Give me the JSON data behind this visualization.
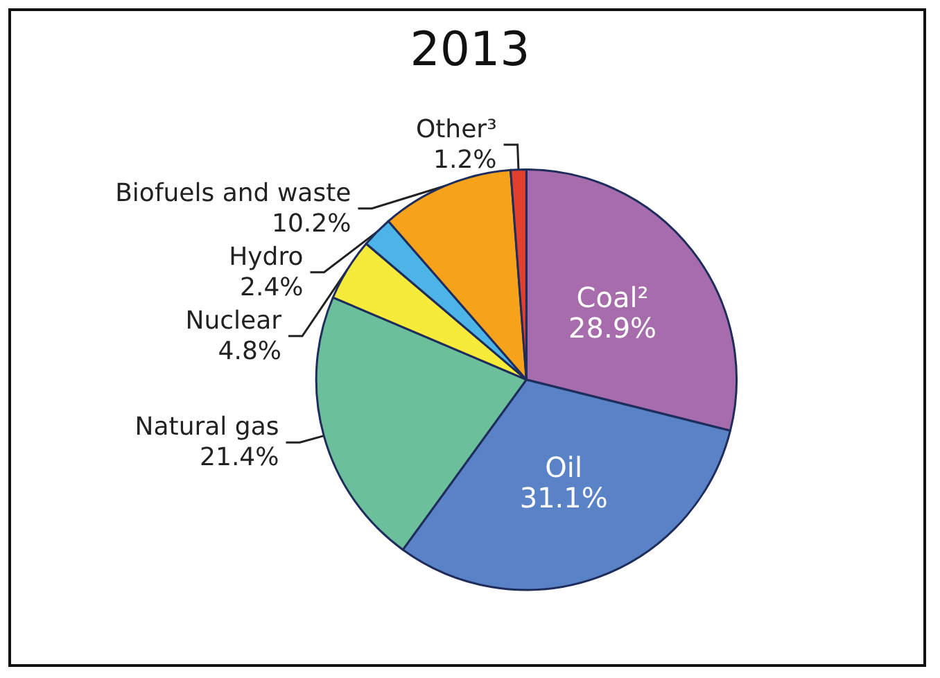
{
  "chart_data": {
    "type": "pie",
    "title": "2013",
    "categories": [
      "Coal²",
      "Oil",
      "Natural gas",
      "Nuclear",
      "Hydro",
      "Biofuels and waste",
      "Other³"
    ],
    "values": [
      28.9,
      31.1,
      21.4,
      4.8,
      2.4,
      10.2,
      1.2
    ],
    "value_labels": [
      "28.9%",
      "31.1%",
      "21.4%",
      "4.8%",
      "2.4%",
      "10.2%",
      "1.2%"
    ],
    "colors": [
      "#a66cab",
      "#5a82c6",
      "#6cbf9b",
      "#f6ea3a",
      "#4db4e8",
      "#f6a31b",
      "#e0402c"
    ],
    "legend": false
  }
}
